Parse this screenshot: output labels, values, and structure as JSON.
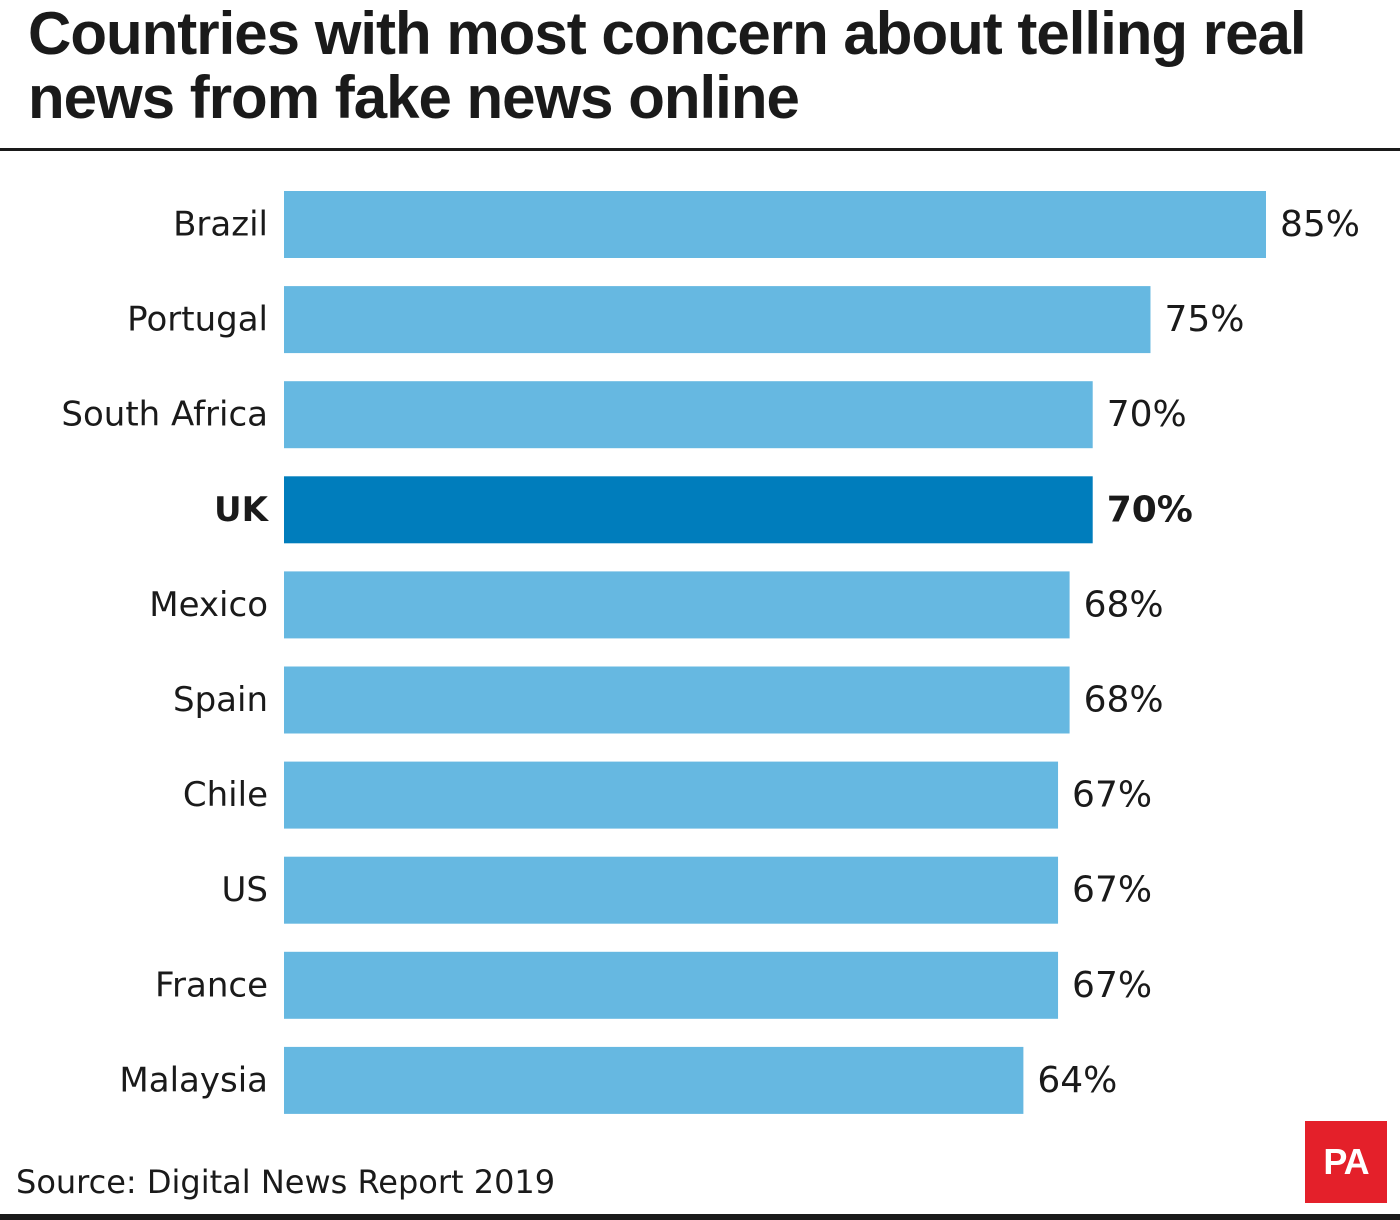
{
  "title": "Countries with most concern about telling real news from fake news online",
  "source": "Source: Digital News Report 2019",
  "logo_text": "PA",
  "colors": {
    "bar": "#66b8e1",
    "highlight_bar": "#007dbc",
    "text": "#1a1a1a",
    "logo": "#e4202a"
  },
  "chart_data": {
    "type": "bar",
    "orientation": "horizontal",
    "categories": [
      "Brazil",
      "Portugal",
      "South Africa",
      "UK",
      "Mexico",
      "Spain",
      "Chile",
      "US",
      "France",
      "Malaysia"
    ],
    "values": [
      85,
      75,
      70,
      70,
      68,
      68,
      67,
      67,
      67,
      64
    ],
    "value_labels": [
      "85%",
      "75%",
      "70%",
      "70%",
      "68%",
      "68%",
      "67%",
      "67%",
      "67%",
      "64%"
    ],
    "highlight": "UK",
    "unit": "%",
    "xlim": [
      0,
      85
    ],
    "grid": false,
    "legend": false
  }
}
